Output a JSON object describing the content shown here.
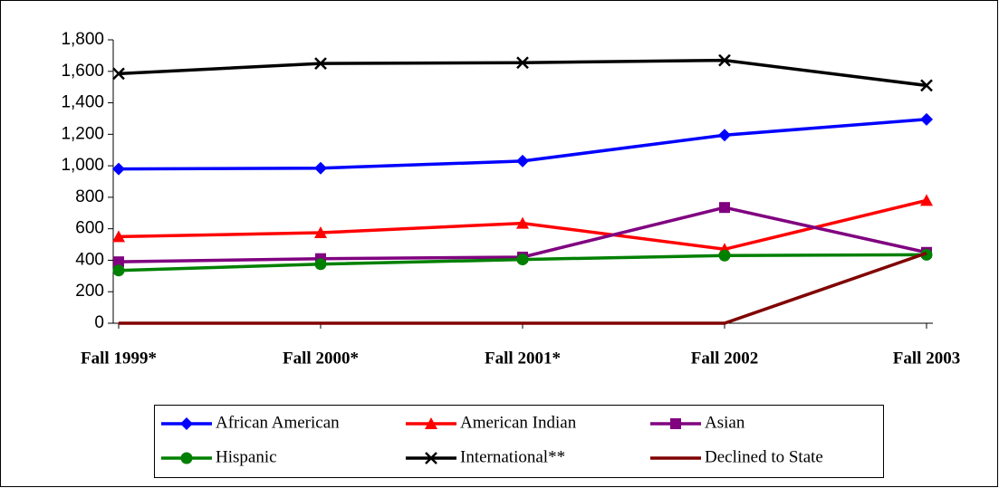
{
  "chart_data": {
    "type": "line",
    "categories": [
      "Fall 1999*",
      "Fall 2000*",
      "Fall 2001*",
      "Fall 2002",
      "Fall 2003"
    ],
    "series": [
      {
        "name": "African American",
        "color": "#0000ff",
        "marker": "diamond",
        "values": [
          980,
          985,
          1030,
          1195,
          1295
        ]
      },
      {
        "name": "American Indian",
        "color": "#ff0000",
        "marker": "triangle",
        "values": [
          550,
          575,
          635,
          470,
          780
        ]
      },
      {
        "name": "Asian",
        "color": "#800080",
        "marker": "square",
        "values": [
          390,
          410,
          420,
          735,
          450
        ]
      },
      {
        "name": "Hispanic",
        "color": "#008000",
        "marker": "circle",
        "values": [
          335,
          375,
          405,
          430,
          435
        ]
      },
      {
        "name": "International**",
        "color": "#000000",
        "marker": "x",
        "values": [
          1585,
          1650,
          1655,
          1670,
          1510
        ]
      },
      {
        "name": "Declined to State",
        "color": "#800000",
        "marker": "none",
        "values": [
          0,
          0,
          0,
          0,
          445
        ]
      }
    ],
    "ylim": [
      0,
      1800
    ],
    "yticks": [
      0,
      {
        "value": 200,
        "label": "200"
      },
      {
        "value": 400,
        "label": "400"
      },
      {
        "value": 600,
        "label": "600"
      },
      {
        "value": 800,
        "label": "800"
      },
      {
        "value": 1000,
        "label": "1,000"
      },
      {
        "value": 1200,
        "label": "1,200"
      },
      {
        "value": 1400,
        "label": "1,400"
      },
      {
        "value": 1600,
        "label": "1,600"
      },
      {
        "value": 1800,
        "label": "1,800"
      }
    ],
    "grid": false
  }
}
